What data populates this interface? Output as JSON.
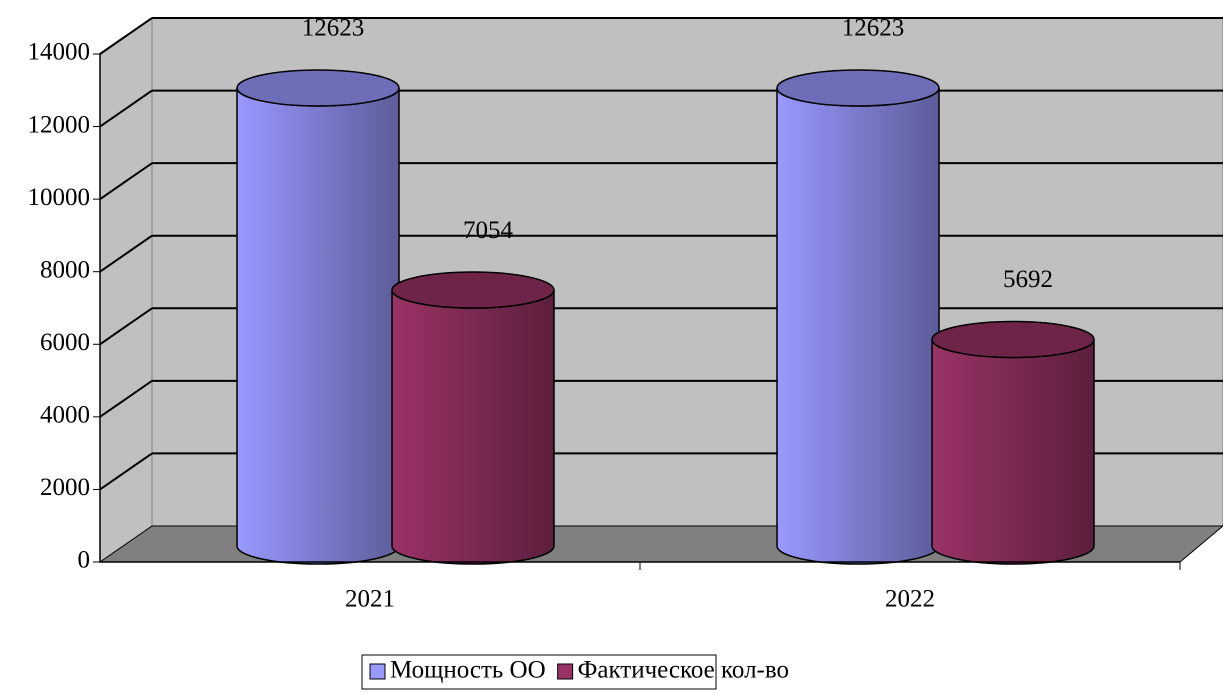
{
  "chart_data": {
    "type": "bar",
    "categories": [
      "2021",
      "2022"
    ],
    "series": [
      {
        "name": "Мощность ОО",
        "color": "#9999ff",
        "values": [
          12623,
          12623
        ]
      },
      {
        "name": "Фактическое кол-во",
        "color": "#993366",
        "values": [
          7054,
          5692
        ]
      }
    ],
    "ylim": [
      0,
      14000
    ],
    "yticks": [
      0,
      2000,
      4000,
      6000,
      8000,
      10000,
      12000,
      14000
    ],
    "grid": true,
    "legend": "bottom"
  }
}
